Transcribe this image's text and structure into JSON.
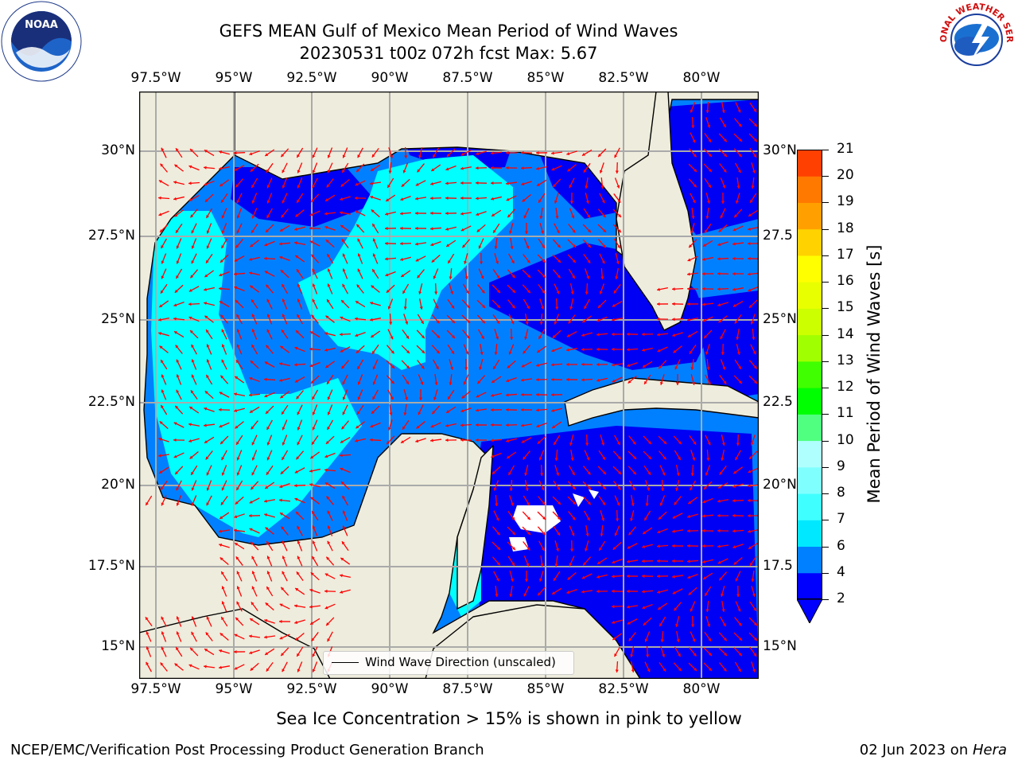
{
  "header": {
    "title_line1": "GEFS MEAN Gulf of Mexico Mean Period of Wind Waves",
    "title_line2": "20230531 t00z 072h fcst   Max: 5.67"
  },
  "logos": {
    "noaa_text": "NOAA",
    "nws_text": "NATIONAL WEATHER SERVICE"
  },
  "map": {
    "lon_labels": [
      "97.5°W",
      "95°W",
      "92.5°W",
      "90°W",
      "87.5°W",
      "85°W",
      "82.5°W",
      "80°W"
    ],
    "lat_labels_left": [
      "30°N",
      "27.5°N",
      "25°N",
      "22.5°N",
      "20°N",
      "17.5°N",
      "15°N"
    ],
    "lat_labels_right": [
      "30°N",
      "27.5",
      "25°N",
      "22.5",
      "20°N",
      "17.5",
      "15°N"
    ],
    "legend_label": "Wind Wave Direction (unscaled)",
    "colors": {
      "land": "#eeecdc",
      "water_deep": "#0000f5",
      "water_mid": "#0080ff",
      "water_light": "#00ffff",
      "arrow": "#ff0000"
    }
  },
  "colorbar": {
    "label": "Mean Period of Wind Waves [s]",
    "ticks": [
      "2",
      "4",
      "6",
      "7",
      "8",
      "9",
      "10",
      "11",
      "12",
      "13",
      "14",
      "15",
      "16",
      "17",
      "18",
      "19",
      "20",
      "21"
    ],
    "colors": [
      "#0000ff",
      "#0080ff",
      "#00e8ff",
      "#40ffff",
      "#80ffff",
      "#b0ffff",
      "#50ff80",
      "#00ff00",
      "#40ff00",
      "#a0ff00",
      "#ccff00",
      "#e8ff00",
      "#ffff00",
      "#ffd200",
      "#ffa000",
      "#ff7800",
      "#ff4000",
      "#ff0000"
    ]
  },
  "footer": {
    "sea_ice_note": "Sea Ice Concentration > 15% is shown in pink to yellow",
    "branch": "NCEP/EMC/Verification Post Processing Product Generation Branch",
    "date": "02 Jun 2023 on ",
    "machine": "Hera"
  }
}
